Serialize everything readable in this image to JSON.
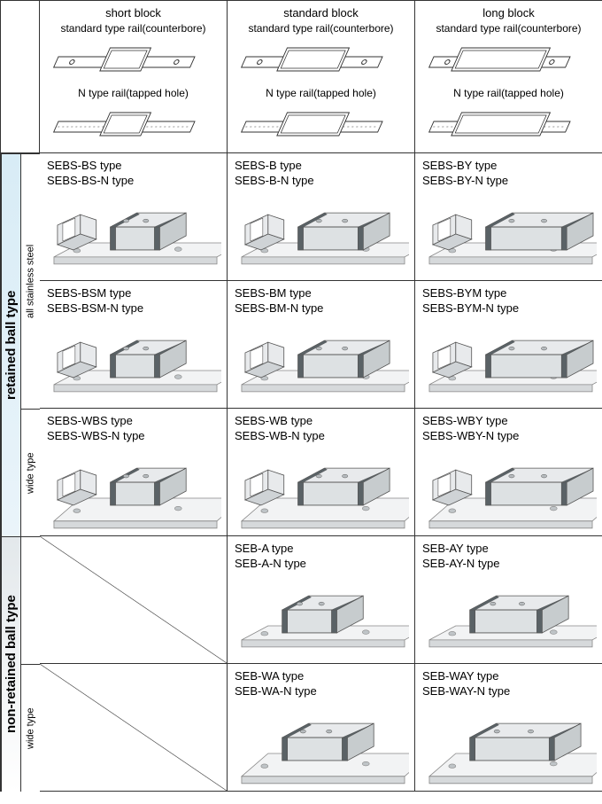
{
  "columns": [
    {
      "title": "short block",
      "sub1": "standard type rail(counterbore)",
      "sub2": "N type rail(tapped hole)",
      "diagram_block_w": 46
    },
    {
      "title": "standard block",
      "sub1": "standard type rail(counterbore)",
      "sub2": "N type rail(tapped hole)",
      "diagram_block_w": 70
    },
    {
      "title": "long block",
      "sub1": "standard type rail(counterbore)",
      "sub2": "N type rail(tapped hole)",
      "diagram_block_w": 100
    }
  ],
  "row_groups": [
    {
      "label": "retained ball type",
      "bg": "retained"
    },
    {
      "label": "non-retained ball type",
      "bg": "nonretained"
    }
  ],
  "sub_groups": {
    "retained": [
      {
        "label": "all stainless steel",
        "rows": 2
      },
      {
        "label": "wide type",
        "rows": 1
      }
    ],
    "nonretained": [
      {
        "label": "",
        "rows": 1
      },
      {
        "label": "wide type",
        "rows": 1
      }
    ]
  },
  "cells": [
    [
      {
        "line1": "SEBS-BS type",
        "line2": "SEBS-BS-N type",
        "block_w": 56,
        "rail_w": 16,
        "extra_block": true
      },
      {
        "line1": "SEBS-B type",
        "line2": "SEBS-B-N type",
        "block_w": 74,
        "rail_w": 16,
        "extra_block": true
      },
      {
        "line1": "SEBS-BY type",
        "line2": "SEBS-BY-N type",
        "block_w": 92,
        "rail_w": 16,
        "extra_block": true
      }
    ],
    [
      {
        "line1": "SEBS-BSM type",
        "line2": "SEBS-BSM-N type",
        "block_w": 56,
        "rail_w": 16,
        "extra_block": true
      },
      {
        "line1": "SEBS-BM type",
        "line2": "SEBS-BM-N type",
        "block_w": 74,
        "rail_w": 16,
        "extra_block": true
      },
      {
        "line1": "SEBS-BYM type",
        "line2": "SEBS-BYM-N type",
        "block_w": 92,
        "rail_w": 16,
        "extra_block": true
      }
    ],
    [
      {
        "line1": "SEBS-WBS type",
        "line2": "SEBS-WBS-N type",
        "block_w": 56,
        "rail_w": 26,
        "extra_block": true
      },
      {
        "line1": "SEBS-WB type",
        "line2": "SEBS-WB-N type",
        "block_w": 74,
        "rail_w": 26,
        "extra_block": true
      },
      {
        "line1": "SEBS-WBY type",
        "line2": "SEBS-WBY-N type",
        "block_w": 92,
        "rail_w": 26,
        "extra_block": true
      }
    ],
    [
      {
        "empty": true
      },
      {
        "line1": "SEB-A type",
        "line2": "SEB-A-N type",
        "block_w": 62,
        "rail_w": 16,
        "extra_block": false
      },
      {
        "line1": "SEB-AY type",
        "line2": "SEB-AY-N type",
        "block_w": 82,
        "rail_w": 16,
        "extra_block": false
      }
    ],
    [
      {
        "empty": true
      },
      {
        "line1": "SEB-WA type",
        "line2": "SEB-WA-N type",
        "block_w": 74,
        "rail_w": 26,
        "extra_block": false
      },
      {
        "line1": "SEB-WAY type",
        "line2": "SEB-WAY-N type",
        "block_w": 96,
        "rail_w": 26,
        "extra_block": false
      }
    ]
  ],
  "colors": {
    "rail_fill": "#f2f3f4",
    "rail_stroke": "#888",
    "block_fill_light": "#e8eaec",
    "block_fill_dark": "#5a6266",
    "block_stroke": "#555",
    "diagram_stroke": "#333"
  }
}
